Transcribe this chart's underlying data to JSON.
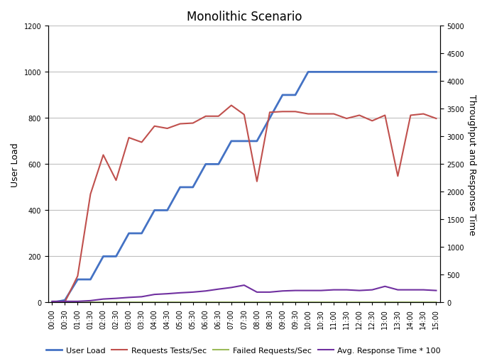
{
  "title": "Monolithic Scenario",
  "ylabel_left": "User Load",
  "ylabel_right": "Throughput and Response Time",
  "ylim_left": [
    0,
    1200
  ],
  "ylim_right": [
    0,
    5000
  ],
  "yticks_left": [
    0,
    200,
    400,
    600,
    800,
    1000,
    1200
  ],
  "yticks_right": [
    0,
    500,
    1000,
    1500,
    2000,
    2500,
    3000,
    3500,
    4000,
    4500,
    5000
  ],
  "time_labels": [
    "00:00",
    "00:30",
    "01:00",
    "01:30",
    "02:00",
    "02:30",
    "03:00",
    "03:30",
    "04:00",
    "04:30",
    "05:00",
    "05:30",
    "06:00",
    "06:30",
    "07:00",
    "07:30",
    "08:00",
    "08:30",
    "09:00",
    "09:30",
    "10:00",
    "10:30",
    "11:00",
    "11:30",
    "12:00",
    "12:30",
    "13:00",
    "13:30",
    "14:00",
    "14:30",
    "15:00"
  ],
  "user_load": [
    0,
    10,
    100,
    100,
    200,
    200,
    300,
    300,
    400,
    400,
    500,
    500,
    600,
    600,
    700,
    700,
    700,
    800,
    900,
    900,
    1000,
    1000,
    1000,
    1000,
    1000,
    1000,
    1000,
    1000,
    1000,
    1000,
    1000
  ],
  "requests_per_sec": [
    0,
    2,
    115,
    470,
    640,
    530,
    715,
    695,
    765,
    755,
    775,
    778,
    808,
    808,
    855,
    815,
    525,
    825,
    828,
    828,
    818,
    818,
    818,
    798,
    812,
    788,
    812,
    548,
    812,
    818,
    798
  ],
  "failed_requests": [
    0,
    0,
    0,
    1,
    1,
    1,
    1,
    1,
    1,
    1,
    1,
    1,
    1,
    1,
    1,
    1,
    1,
    1,
    1,
    1,
    1,
    1,
    1,
    1,
    1,
    1,
    1,
    1,
    1,
    1,
    1
  ],
  "avg_response_time": [
    5,
    5,
    5,
    8,
    15,
    18,
    22,
    25,
    35,
    38,
    42,
    45,
    50,
    58,
    65,
    75,
    45,
    45,
    50,
    52,
    52,
    52,
    55,
    55,
    52,
    55,
    70,
    55,
    55,
    55,
    52
  ],
  "user_load_color": "#4472C4",
  "requests_color": "#C0504D",
  "failed_color": "#9BBB59",
  "response_color": "#7030A0",
  "legend_labels": [
    "User Load",
    "Requests Tests/Sec",
    "Failed Requests/Sec",
    "Avg. Response Time * 100"
  ],
  "grid_color": "#BFBFBF",
  "line_width": 1.5,
  "user_load_lw": 2.0,
  "title_fontsize": 12,
  "axis_fontsize": 9,
  "tick_fontsize": 7,
  "legend_fontsize": 8
}
